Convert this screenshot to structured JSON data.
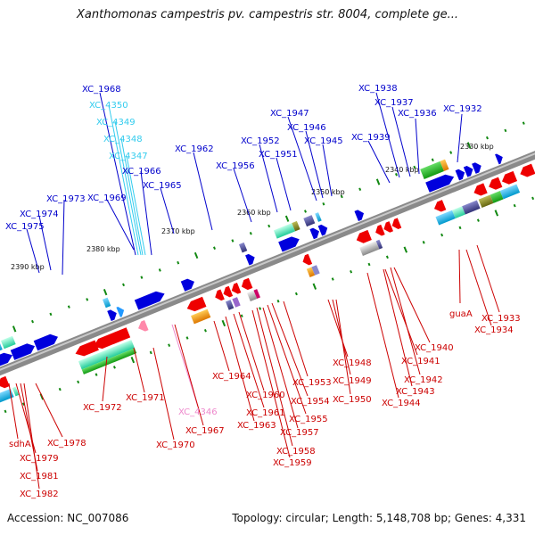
{
  "title": "Xanthomonas campestris pv. campestris str. 8004, complete ge...",
  "footer": {
    "accession": "Accession: NC_007086",
    "summary": "Topology: circular; Length: 5,148,708 bp; Genes: 4,331"
  },
  "colors": {
    "forward_label": "#0000cc",
    "reverse_label": "#cc0000",
    "forward_light_label": "#33ccee",
    "reverse_light_label": "#ee88cc",
    "backbone": "#888888",
    "tick": "#118811"
  },
  "scale_labels": [
    "2330 kbp",
    "2340 kbp",
    "2350 kbp",
    "2360 kbp",
    "2370 kbp",
    "2380 kbp",
    "2390 kbp"
  ],
  "upper_labels": [
    {
      "text": "XC_1968",
      "color": "blue"
    },
    {
      "text": "XC_4350",
      "color": "cyan"
    },
    {
      "text": "XC_4349",
      "color": "cyan"
    },
    {
      "text": "XC_4348",
      "color": "cyan"
    },
    {
      "text": "XC_4347",
      "color": "cyan"
    },
    {
      "text": "XC_1966",
      "color": "blue"
    },
    {
      "text": "XC_1965",
      "color": "blue"
    },
    {
      "text": "XC_1969",
      "color": "blue"
    },
    {
      "text": "XC_1973",
      "color": "blue"
    },
    {
      "text": "XC_1974",
      "color": "blue"
    },
    {
      "text": "XC_1975",
      "color": "blue"
    },
    {
      "text": "XC_1962",
      "color": "blue"
    },
    {
      "text": "XC_1956",
      "color": "blue"
    },
    {
      "text": "XC_1952",
      "color": "blue"
    },
    {
      "text": "XC_1951",
      "color": "blue"
    },
    {
      "text": "XC_1947",
      "color": "blue"
    },
    {
      "text": "XC_1946",
      "color": "blue"
    },
    {
      "text": "XC_1945",
      "color": "blue"
    },
    {
      "text": "XC_1939",
      "color": "blue"
    },
    {
      "text": "XC_1938",
      "color": "blue"
    },
    {
      "text": "XC_1937",
      "color": "blue"
    },
    {
      "text": "XC_1936",
      "color": "blue"
    },
    {
      "text": "XC_1932",
      "color": "blue"
    }
  ],
  "lower_labels": [
    {
      "text": "guaA",
      "color": "red"
    },
    {
      "text": "XC_1933",
      "color": "red"
    },
    {
      "text": "XC_1934",
      "color": "red"
    },
    {
      "text": "XC_1940",
      "color": "red"
    },
    {
      "text": "XC_1941",
      "color": "red"
    },
    {
      "text": "XC_1942",
      "color": "red"
    },
    {
      "text": "XC_1943",
      "color": "red"
    },
    {
      "text": "XC_1944",
      "color": "red"
    },
    {
      "text": "XC_1948",
      "color": "red"
    },
    {
      "text": "XC_1949",
      "color": "red"
    },
    {
      "text": "XC_1950",
      "color": "red"
    },
    {
      "text": "XC_1953",
      "color": "red"
    },
    {
      "text": "XC_1954",
      "color": "red"
    },
    {
      "text": "XC_1955",
      "color": "red"
    },
    {
      "text": "XC_1957",
      "color": "red"
    },
    {
      "text": "XC_1958",
      "color": "red"
    },
    {
      "text": "XC_1959",
      "color": "red"
    },
    {
      "text": "XC_1964",
      "color": "red"
    },
    {
      "text": "XC_1960",
      "color": "red"
    },
    {
      "text": "XC_1961",
      "color": "red"
    },
    {
      "text": "XC_1963",
      "color": "red"
    },
    {
      "text": "XC_4346",
      "color": "pink"
    },
    {
      "text": "XC_1967",
      "color": "red"
    },
    {
      "text": "XC_1970",
      "color": "red"
    },
    {
      "text": "XC_1971",
      "color": "red"
    },
    {
      "text": "XC_1972",
      "color": "red"
    },
    {
      "text": "XC_1978",
      "color": "red"
    },
    {
      "text": "sdhA",
      "color": "red"
    },
    {
      "text": "XC_1979",
      "color": "red"
    },
    {
      "text": "XC_1981",
      "color": "red"
    },
    {
      "text": "XC_1982",
      "color": "red"
    }
  ]
}
